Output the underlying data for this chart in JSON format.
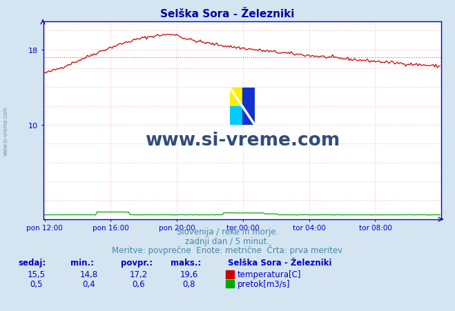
{
  "title": "Selška Sora - Železniki",
  "bg_color": "#d4e4f0",
  "plot_bg_color": "#ffffff",
  "grid_color": "#ffaaaa",
  "axis_color": "#0000cc",
  "title_color": "#0000aa",
  "temp_color": "#cc0000",
  "flow_color": "#00aa00",
  "avg_line_color": "#ff4444",
  "text_color": "#4488aa",
  "n_points": 288,
  "temp_min": 14.8,
  "temp_avg": 17.2,
  "temp_max": 19.6,
  "temp_current": 15.5,
  "flow_min": 0.4,
  "flow_avg": 0.6,
  "flow_max": 0.8,
  "flow_current": 0.5,
  "ymin": 0,
  "ymax": 21,
  "watermark_text": "www.si-vreme.com",
  "watermark_color": "#1a3a6e",
  "sidebar_text": "www.si-vreme.com",
  "subtitle1": "Slovenija / reke in morje.",
  "subtitle2": "zadnji dan / 5 minut.",
  "subtitle3": "Meritve: povprečne  Enote: metrične  Črta: prva meritev",
  "legend_title": "Selška Sora - Železniki",
  "label_sedaj": "sedaj:",
  "label_min": "min.:",
  "label_povpr": "povpr.:",
  "label_maks": "maks.:",
  "label_temp": "temperatura[C]",
  "label_flow": "pretok[m3/s]",
  "row1_vals": [
    "15,5",
    "14,8",
    "17,2",
    "19,6"
  ],
  "row2_vals": [
    "0,5",
    "0,4",
    "0,6",
    "0,8"
  ],
  "xtick_labels": [
    "pon 12:00",
    "pon 16:00",
    "pon 20:00",
    "tor 00:00",
    "tor 04:00",
    "tor 08:00"
  ],
  "xtick_positions": [
    0,
    48,
    96,
    144,
    192,
    240
  ]
}
